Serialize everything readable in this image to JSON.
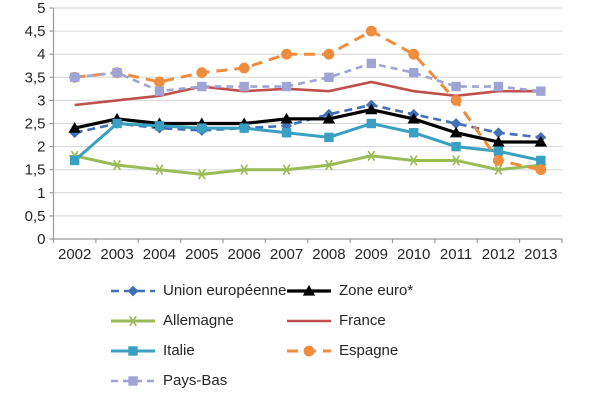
{
  "chart_data": {
    "type": "line",
    "title": "",
    "xlabel": "",
    "ylabel": "",
    "categories": [
      "2002",
      "2003",
      "2004",
      "2005",
      "2006",
      "2007",
      "2008",
      "2009",
      "2010",
      "2011",
      "2012",
      "2013"
    ],
    "ylim": [
      0,
      5
    ],
    "ytick_step": 0.5,
    "ytick_labels": [
      "0",
      "0,5",
      "1",
      "1,5",
      "2",
      "2,5",
      "3",
      "3,5",
      "4",
      "4,5",
      "5"
    ],
    "grid": true,
    "legend_position": "bottom",
    "series": [
      {
        "name": "Union européenne",
        "key": "union-europeenne",
        "color": "#4070b8",
        "line_style": "dashed",
        "marker": "diamond",
        "values": [
          2.3,
          2.5,
          2.4,
          2.35,
          2.4,
          2.45,
          2.7,
          2.9,
          2.7,
          2.5,
          2.3,
          2.2
        ]
      },
      {
        "name": "Zone euro*",
        "key": "zone-euro",
        "color": "#000000",
        "line_style": "solid",
        "marker": "triangle",
        "values": [
          2.4,
          2.6,
          2.5,
          2.5,
          2.5,
          2.6,
          2.6,
          2.8,
          2.6,
          2.3,
          2.1,
          2.1
        ]
      },
      {
        "name": "Allemagne",
        "key": "allemagne",
        "color": "#9bbb59",
        "line_style": "solid",
        "marker": "star",
        "values": [
          1.8,
          1.6,
          1.5,
          1.4,
          1.5,
          1.5,
          1.6,
          1.8,
          1.7,
          1.7,
          1.5,
          1.6
        ]
      },
      {
        "name": "France",
        "key": "france",
        "color": "#c0504d",
        "line_style": "solid",
        "marker": "none",
        "values": [
          2.9,
          3.0,
          3.1,
          3.3,
          3.2,
          3.25,
          3.2,
          3.4,
          3.2,
          3.1,
          3.2,
          3.2
        ]
      },
      {
        "name": "Italie",
        "key": "italie",
        "color": "#39a0c1",
        "line_style": "solid",
        "marker": "square",
        "values": [
          1.7,
          2.5,
          2.45,
          2.4,
          2.4,
          2.3,
          2.2,
          2.5,
          2.3,
          2.0,
          1.9,
          1.7
        ]
      },
      {
        "name": "Espagne",
        "key": "espagne",
        "color": "#f08c3d",
        "line_style": "dashed",
        "marker": "circle",
        "values": [
          3.5,
          3.6,
          3.4,
          3.6,
          3.7,
          4.0,
          4.0,
          4.5,
          4.0,
          3.0,
          1.7,
          1.5
        ]
      },
      {
        "name": "Pays-Bas",
        "key": "pays-bas",
        "color": "#9fa4d5",
        "line_style": "dashed",
        "marker": "square",
        "values": [
          3.5,
          3.6,
          3.2,
          3.3,
          3.3,
          3.3,
          3.5,
          3.8,
          3.6,
          3.3,
          3.3,
          3.2
        ]
      }
    ],
    "colors": {
      "gridline": "#d6d6d6",
      "axis": "#9b9b9b",
      "tick_text": "#262626"
    }
  }
}
